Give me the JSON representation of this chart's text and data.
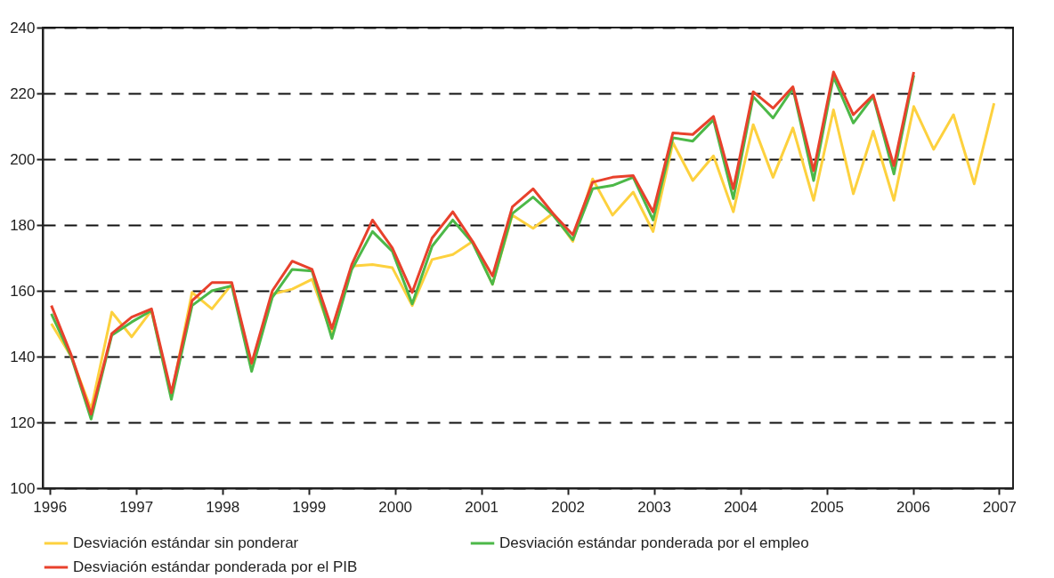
{
  "chart_data": {
    "type": "line",
    "x": [
      1996.02,
      1996.25,
      1996.48,
      1996.72,
      1996.95,
      1997.18,
      1997.41,
      1997.65,
      1997.88,
      1998.11,
      1998.34,
      1998.58,
      1998.81,
      1999.04,
      1999.27,
      1999.5,
      1999.74,
      1999.97,
      2000.2,
      2000.43,
      2000.67,
      2000.9,
      2001.13,
      2001.36,
      2001.6,
      2001.83,
      2002.06,
      2002.29,
      2002.52,
      2002.76,
      2002.99,
      2003.22,
      2003.45,
      2003.69,
      2003.92,
      2004.15,
      2004.38,
      2004.61,
      2004.85,
      2005.08,
      2005.31,
      2005.54,
      2005.78,
      2006.01,
      2006.24,
      2006.47,
      2006.71,
      2006.94
    ],
    "series": [
      {
        "name": "Desviación estándar sin ponderar",
        "color": "#fdd13e",
        "values": [
          150,
          140,
          124,
          153.5,
          146,
          154,
          128,
          159.5,
          154.5,
          162,
          137,
          159,
          160.5,
          163.5,
          146.5,
          167.5,
          168,
          167,
          155.5,
          169.5,
          171,
          175,
          162,
          183,
          179,
          183.5,
          175,
          194,
          183,
          190,
          178,
          205,
          193.5,
          201,
          184,
          210.5,
          194.5,
          209.5,
          187.5,
          215,
          189.5,
          208.5,
          187.5,
          216,
          203,
          213.5,
          192.5,
          217
        ]
      },
      {
        "name": "Desviación estándar ponderada por el empleo",
        "color": "#4cb848",
        "values": [
          153,
          140,
          121,
          146.5,
          150.5,
          154,
          127,
          155.5,
          160,
          161.5,
          135.5,
          158,
          166.5,
          166,
          145.5,
          166.5,
          178,
          172,
          156,
          173.5,
          181.5,
          174.5,
          162,
          183.5,
          188.5,
          183,
          175.5,
          191,
          192,
          194.5,
          181.5,
          206.5,
          205.5,
          212,
          188,
          219,
          212.5,
          221.5,
          193.5,
          225,
          211,
          219,
          195.5,
          225.5,
          null,
          null,
          null,
          null
        ]
      },
      {
        "name": "Desviación estándar ponderada por el PIB",
        "color": "#e8412c",
        "values": [
          155.5,
          140.5,
          122.5,
          147,
          152,
          154.5,
          129,
          157,
          162.5,
          162.5,
          138,
          160,
          169,
          166.5,
          148.5,
          168,
          181.5,
          173,
          159.5,
          176,
          184,
          175,
          164.5,
          185.5,
          191,
          183.5,
          177,
          193,
          194.5,
          195,
          184,
          208,
          207.5,
          213,
          191,
          220.5,
          215.5,
          222,
          196.5,
          226.5,
          213.5,
          219.5,
          198,
          226.5,
          null,
          null,
          null,
          null
        ]
      }
    ],
    "xlim": [
      1995.92,
      2007.16
    ],
    "xticks": [
      1996,
      1997,
      1998,
      1999,
      2000,
      2001,
      2002,
      2003,
      2004,
      2005,
      2006,
      2007
    ],
    "ylim": [
      100,
      240
    ],
    "yticks": [
      100,
      120,
      140,
      160,
      180,
      200,
      220,
      240
    ],
    "grid": "y",
    "legend": "bottom",
    "marker": "none",
    "line_style": "solid"
  }
}
